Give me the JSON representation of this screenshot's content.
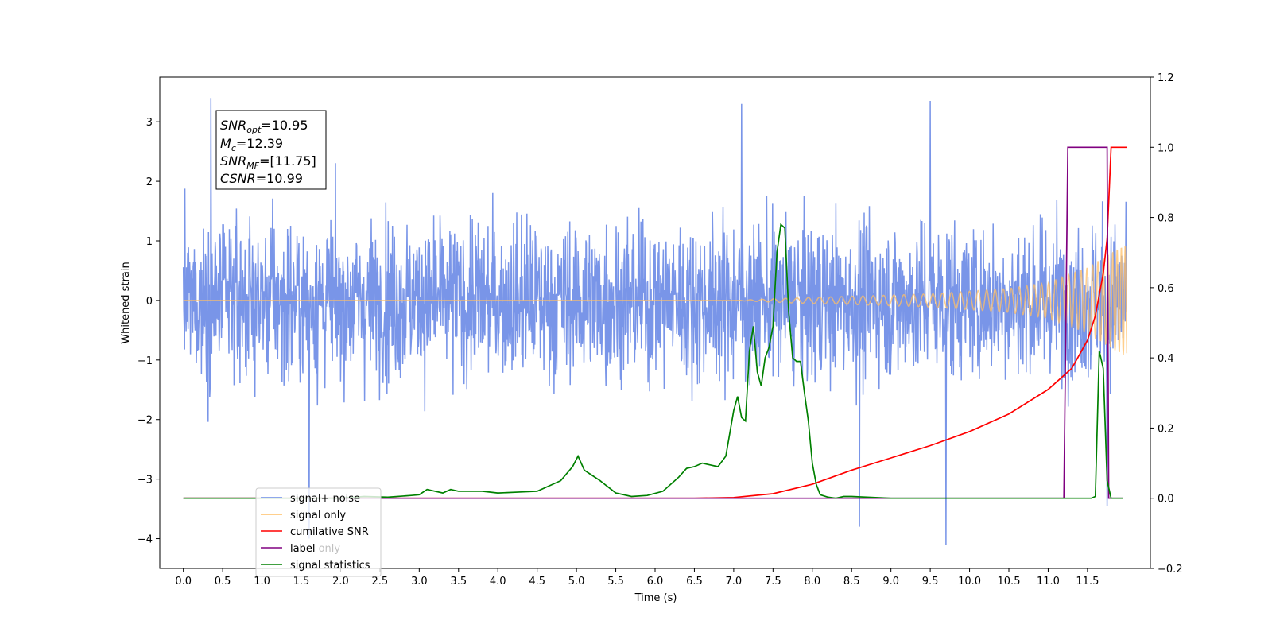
{
  "chart_data": {
    "type": "line",
    "title": "",
    "xlabel": "Time (s)",
    "ylabel": "Whitened strain",
    "x_ticks": [
      0.0,
      0.5,
      1.0,
      1.5,
      2.0,
      2.5,
      3.0,
      3.5,
      4.0,
      4.5,
      5.0,
      5.5,
      6.0,
      6.5,
      7.0,
      7.5,
      8.0,
      8.5,
      9.0,
      9.5,
      10.0,
      10.5,
      11.0,
      11.5
    ],
    "x_tick_labels": [
      "0.0",
      "0.5",
      "1.0",
      "1.5",
      "2.0",
      "2.5",
      "3.0",
      "3.5",
      "4.0",
      "4.5",
      "5.0",
      "5.5",
      "6.0",
      "6.5",
      "7.0",
      "7.5",
      "8.0",
      "8.5",
      "9.0",
      "9.5",
      "10.0",
      "10.5",
      "11.0",
      "11.5"
    ],
    "xlim": [
      -0.3,
      12.3
    ],
    "ylim_left": [
      -4.5,
      3.75
    ],
    "y_left_ticks": [
      -4,
      -3,
      -2,
      -1,
      0,
      1,
      2,
      3
    ],
    "y_left_tick_labels": [
      "−4",
      "−3",
      "−2",
      "−1",
      "0",
      "1",
      "2",
      "3"
    ],
    "ylim_right": [
      -0.2,
      1.2
    ],
    "y_right_ticks": [
      -0.2,
      0.0,
      0.2,
      0.4,
      0.6,
      0.8,
      1.0,
      1.2
    ],
    "y_right_tick_labels": [
      "−0.2",
      "0.0",
      "0.2",
      "0.4",
      "0.6",
      "0.8",
      "1.0",
      "1.2"
    ],
    "legend_position": "lower-left",
    "annotation": {
      "snr_opt": {
        "base": "SNR",
        "sub": "opt",
        "value": "=10.95"
      },
      "mc": {
        "base": "M",
        "sub": "c",
        "value": "=12.39"
      },
      "snr_mf": {
        "base": "SNR",
        "sub": "MF",
        "value": "=[11.75]"
      },
      "csnr": {
        "base": "CSNR",
        "value": "=10.99"
      }
    },
    "series": [
      {
        "name": "signal+ noise",
        "axis": "left",
        "color": "#6a8ae6",
        "style": "noise",
        "x_range": [
          0.0,
          12.0
        ],
        "amplitude_typical": 1.3,
        "peaks": [
          [
            0.35,
            3.4
          ],
          [
            1.6,
            -4.0
          ],
          [
            7.1,
            3.3
          ],
          [
            8.6,
            -3.8
          ],
          [
            9.7,
            -4.1
          ],
          [
            9.5,
            3.35
          ],
          [
            11.75,
            -3.45
          ]
        ]
      },
      {
        "name": "signal only",
        "axis": "left",
        "color": "#ffbf66",
        "style": "chirp",
        "envelope": [
          [
            0.0,
            0.0
          ],
          [
            7.0,
            0.0
          ],
          [
            7.7,
            0.04
          ],
          [
            8.5,
            0.07
          ],
          [
            9.5,
            0.11
          ],
          [
            10.5,
            0.2
          ],
          [
            11.0,
            0.3
          ],
          [
            11.5,
            0.55
          ],
          [
            11.8,
            0.8
          ],
          [
            12.0,
            0.95
          ]
        ]
      },
      {
        "name": "cumilative SNR",
        "axis": "right",
        "color": "#ff0000",
        "x": [
          0.0,
          6.5,
          7.0,
          7.5,
          8.0,
          8.5,
          9.0,
          9.5,
          10.0,
          10.5,
          11.0,
          11.3,
          11.5,
          11.6,
          11.7,
          11.75,
          11.8,
          12.0
        ],
        "y": [
          0.0,
          0.0,
          0.002,
          0.013,
          0.04,
          0.08,
          0.115,
          0.15,
          0.19,
          0.24,
          0.31,
          0.37,
          0.45,
          0.52,
          0.64,
          0.74,
          1.0,
          1.0
        ]
      },
      {
        "name": "label",
        "axis": "right",
        "color": "#800080",
        "x": [
          0.0,
          11.2,
          11.25,
          11.75,
          11.77,
          11.95
        ],
        "y": [
          0.0,
          0.0,
          1.0,
          1.0,
          0.0,
          0.0
        ]
      },
      {
        "name": "label only",
        "axis": "right",
        "color": "#800080",
        "hidden_behind_legend": true,
        "x": [],
        "y": []
      },
      {
        "name": "signal statistics",
        "axis": "right",
        "color": "#008000",
        "x": [
          0.0,
          1.0,
          2.0,
          2.3,
          2.6,
          2.9,
          3.0,
          3.1,
          3.3,
          3.4,
          3.5,
          3.8,
          4.0,
          4.3,
          4.5,
          4.8,
          4.95,
          5.02,
          5.1,
          5.2,
          5.3,
          5.5,
          5.7,
          5.9,
          6.1,
          6.3,
          6.4,
          6.5,
          6.6,
          6.7,
          6.8,
          6.9,
          7.0,
          7.05,
          7.1,
          7.15,
          7.2,
          7.25,
          7.3,
          7.35,
          7.4,
          7.45,
          7.5,
          7.55,
          7.6,
          7.65,
          7.7,
          7.75,
          7.8,
          7.85,
          7.9,
          7.95,
          8.0,
          8.05,
          8.1,
          8.2,
          8.3,
          8.4,
          8.5,
          9.0,
          9.5,
          10.0,
          11.0,
          11.55,
          11.6,
          11.65,
          11.7,
          11.75,
          11.8,
          11.9,
          11.95
        ],
        "y": [
          0.0,
          0.0,
          0.0,
          0.005,
          0.003,
          0.008,
          0.01,
          0.025,
          0.015,
          0.025,
          0.02,
          0.02,
          0.015,
          0.018,
          0.02,
          0.05,
          0.09,
          0.12,
          0.08,
          0.065,
          0.05,
          0.015,
          0.005,
          0.008,
          0.02,
          0.06,
          0.085,
          0.09,
          0.1,
          0.095,
          0.09,
          0.12,
          0.25,
          0.29,
          0.23,
          0.22,
          0.42,
          0.49,
          0.36,
          0.32,
          0.4,
          0.43,
          0.49,
          0.7,
          0.78,
          0.77,
          0.53,
          0.4,
          0.39,
          0.39,
          0.3,
          0.22,
          0.1,
          0.04,
          0.01,
          0.003,
          0.0,
          0.005,
          0.005,
          0.0,
          0.0,
          0.0,
          0.0,
          0.0,
          0.005,
          0.42,
          0.37,
          0.05,
          0.0,
          0.0,
          0.0
        ]
      }
    ]
  }
}
